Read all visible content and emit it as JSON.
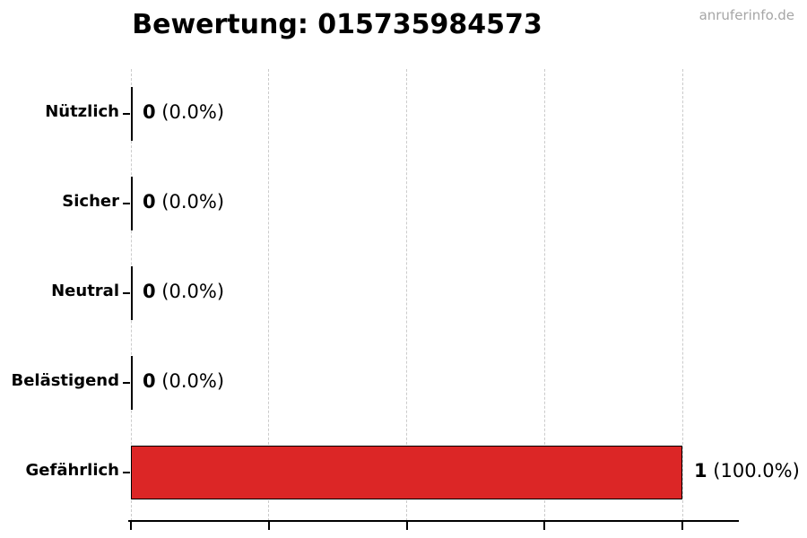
{
  "title": "Bewertung: 015735984573",
  "watermark": "anruferinfo.de",
  "chart_data": {
    "type": "bar",
    "orientation": "horizontal",
    "title": "Bewertung: 015735984573",
    "categories": [
      "Nützlich",
      "Sicher",
      "Neutral",
      "Belästigend",
      "Gefährlich"
    ],
    "values": [
      0,
      0,
      0,
      0,
      1
    ],
    "value_labels": [
      {
        "count": "0",
        "percent": " (0.0%)"
      },
      {
        "count": "0",
        "percent": " (0.0%)"
      },
      {
        "count": "0",
        "percent": " (0.0%)"
      },
      {
        "count": "0",
        "percent": " (0.0%)"
      },
      {
        "count": "1",
        "percent": " (100.0%)"
      }
    ],
    "xlabel": "",
    "ylabel": "",
    "xlim": [
      0,
      1.1
    ],
    "xticks": [
      0,
      0.25,
      0.5,
      0.75,
      1.0
    ],
    "xtick_labels_visible": false,
    "grid": "vertical-dashed",
    "legend": "none",
    "colors": {
      "bar_fill": "#dc2626",
      "bar_edge": "#000000",
      "zero_bar": "#000000",
      "gridline": "#cbcbcb",
      "axis": "#000000",
      "text": "#000000",
      "watermark": "#a6a6a6",
      "background": "#ffffff"
    }
  }
}
